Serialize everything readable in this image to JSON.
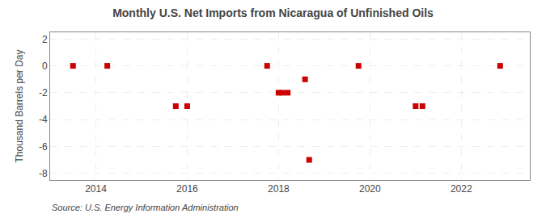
{
  "chart_data": {
    "type": "scatter",
    "title": "Monthly U.S. Net Imports from Nicaragua of Unfinished Oils",
    "ylabel": "Thousand Barrels per Day",
    "annotations": [
      "Source: U.S. Energy Information Administration"
    ],
    "x": [
      2013.5,
      2014.25,
      2015.75,
      2016.0,
      2017.75,
      2018.0,
      2018.08,
      2018.2,
      2018.58,
      2018.67,
      2019.75,
      2021.0,
      2021.15,
      2022.85
    ],
    "values": [
      0,
      0,
      -3,
      -3,
      0,
      -2,
      -2,
      -2,
      -1,
      -7,
      0,
      -3,
      -3,
      0
    ],
    "color": "#cc0000",
    "marker": "square",
    "xlim": [
      2013.0,
      2023.5
    ],
    "ylim": [
      -8.5,
      2.5
    ],
    "xticks": [
      2014,
      2016,
      2018,
      2020,
      2022
    ],
    "yticks": [
      2,
      0,
      -2,
      -4,
      -6,
      -8
    ],
    "grid": true
  }
}
